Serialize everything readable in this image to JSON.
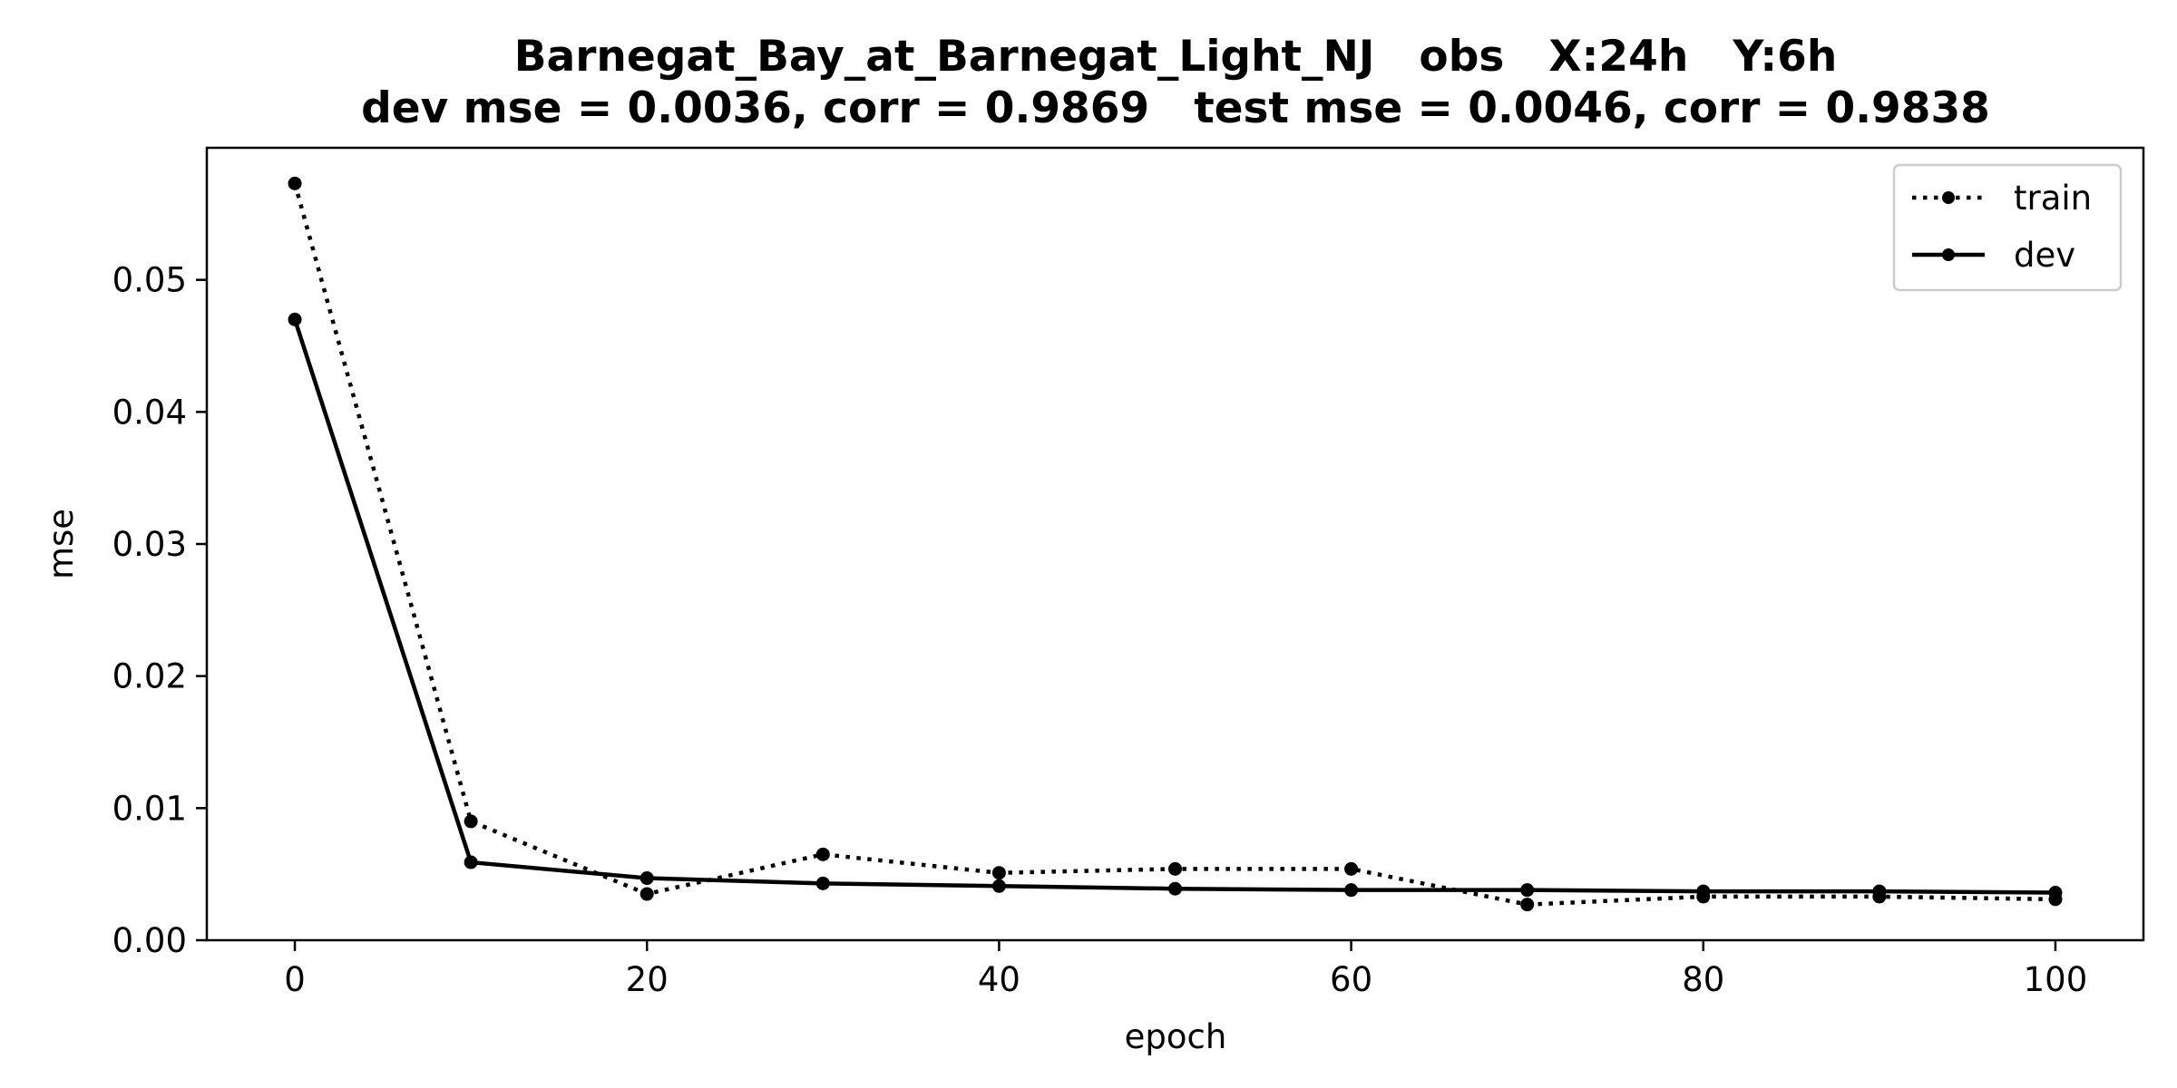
{
  "chart_data": {
    "type": "line",
    "title_line1": "Barnegat_Bay_at_Barnegat_Light_NJ   obs   X:24h   Y:6h",
    "title_line2": "dev mse = 0.0036, corr = 0.9869   test mse = 0.0046, corr = 0.9838",
    "xlabel": "epoch",
    "ylabel": "mse",
    "xlim": [
      -5,
      105
    ],
    "ylim": [
      0,
      0.06
    ],
    "xticks": [
      0,
      20,
      40,
      60,
      80,
      100
    ],
    "xtick_labels": [
      "0",
      "20",
      "40",
      "60",
      "80",
      "100"
    ],
    "yticks": [
      0,
      0.01,
      0.02,
      0.03,
      0.04,
      0.05
    ],
    "ytick_labels": [
      "0.00",
      "0.01",
      "0.02",
      "0.03",
      "0.04",
      "0.05"
    ],
    "grid": false,
    "legend_position": "top-right",
    "x": [
      0,
      10,
      20,
      30,
      40,
      50,
      60,
      70,
      80,
      90,
      100
    ],
    "series": [
      {
        "name": "train",
        "style": "dotted",
        "color": "#000000",
        "values": [
          0.0573,
          0.009,
          0.0035,
          0.0065,
          0.0051,
          0.0054,
          0.0054,
          0.0027,
          0.0033,
          0.0033,
          0.0031
        ]
      },
      {
        "name": "dev",
        "style": "solid",
        "color": "#000000",
        "values": [
          0.047,
          0.0059,
          0.0047,
          0.0043,
          0.0041,
          0.0039,
          0.0038,
          0.0038,
          0.0037,
          0.0037,
          0.0036
        ]
      }
    ]
  }
}
